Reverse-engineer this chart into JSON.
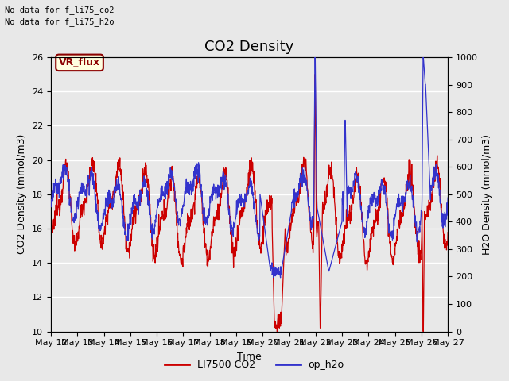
{
  "title": "CO2 Density",
  "xlabel": "Time",
  "ylabel_left": "CO2 Density (mmol/m3)",
  "ylabel_right": "H2O Density (mmol/m3)",
  "ylim_left": [
    10,
    26
  ],
  "ylim_right": [
    0,
    1000
  ],
  "yticks_left": [
    10,
    12,
    14,
    16,
    18,
    20,
    22,
    24,
    26
  ],
  "yticks_right": [
    0,
    100,
    200,
    300,
    400,
    500,
    600,
    700,
    800,
    900,
    1000
  ],
  "xtick_labels": [
    "May 12",
    "May 13",
    "May 14",
    "May 15",
    "May 16",
    "May 17",
    "May 18",
    "May 19",
    "May 20",
    "May 21",
    "May 22",
    "May 23",
    "May 24",
    "May 25",
    "May 26",
    "May 27"
  ],
  "no_data_text_1": "No data for f_li75_co2",
  "no_data_text_2": "No data for f_li75_h2o",
  "vr_flux_label": "VR_flux",
  "legend_labels": [
    "LI7500 CO2",
    "op_h2o"
  ],
  "legend_colors": [
    "#cc0000",
    "#3333cc"
  ],
  "line_color_co2": "#cc0000",
  "line_color_h2o": "#3333cc",
  "background_color": "#e8e8e8",
  "fig_background": "#e8e8e8",
  "title_fontsize": 13,
  "axis_label_fontsize": 9,
  "tick_fontsize": 8
}
